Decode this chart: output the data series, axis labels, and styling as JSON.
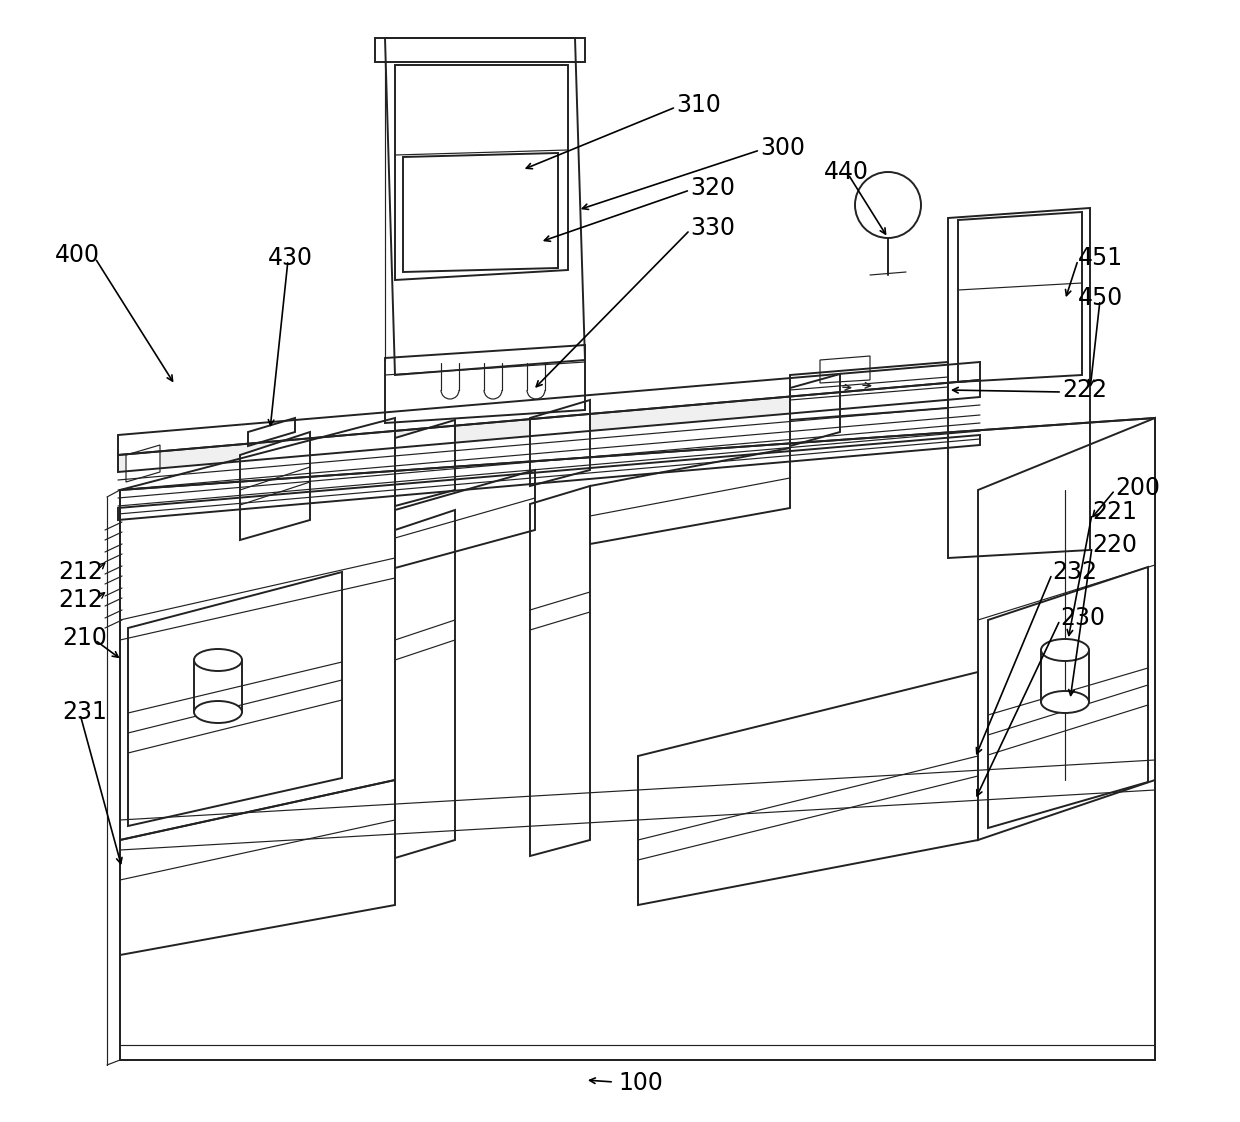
{
  "bg_color": "#ffffff",
  "line_color": "#222222",
  "lw": 1.4,
  "tlw": 0.85,
  "figsize": [
    12.4,
    11.22
  ],
  "dpi": 100
}
